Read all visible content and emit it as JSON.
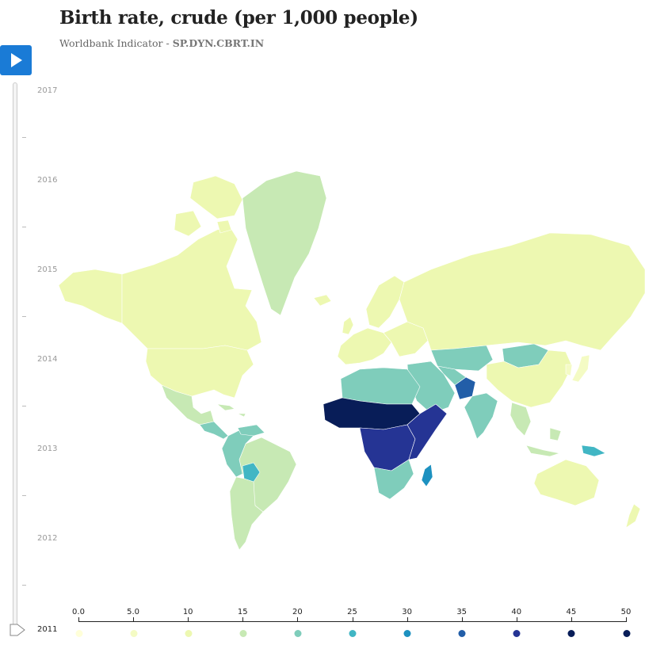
{
  "header": {
    "title": "Birth rate, crude (per 1,000 people)",
    "subtitle_prefix": "Worldbank Indicator - ",
    "indicator_code": "SP.DYN.CBRT.IN"
  },
  "player": {
    "play_icon": "play-icon",
    "accent_color": "#1a7bd6",
    "years": [
      "2017",
      "2016",
      "2015",
      "2014",
      "2013",
      "2012"
    ],
    "current_year": "2011",
    "year_min": 2011,
    "year_max": 2017,
    "selected_year": 2011
  },
  "legend": {
    "labels": [
      "0.0",
      "5.0",
      "10",
      "15",
      "20",
      "25",
      "30",
      "35",
      "40",
      "45",
      "50"
    ],
    "values": [
      0,
      5,
      10,
      15,
      20,
      25,
      30,
      35,
      40,
      45,
      50
    ],
    "colors": [
      "#ffffd9",
      "#f4fbc4",
      "#edf8b1",
      "#c7e9b4",
      "#7fcdbb",
      "#41b6c4",
      "#1d91c0",
      "#225ea8",
      "#253494",
      "#081d58",
      "#081d58"
    ]
  },
  "map": {
    "projection": "mercator",
    "regions": [
      {
        "name": "Canada",
        "value": 11
      },
      {
        "name": "United States",
        "value": 13
      },
      {
        "name": "Greenland",
        "value": 15
      },
      {
        "name": "Mexico",
        "value": 19
      },
      {
        "name": "Central America",
        "value": 24
      },
      {
        "name": "Brazil",
        "value": 15
      },
      {
        "name": "Andean region",
        "value": 20
      },
      {
        "name": "Bolivia",
        "value": 25
      },
      {
        "name": "Argentina",
        "value": 17
      },
      {
        "name": "Western Europe",
        "value": 11
      },
      {
        "name": "Eastern Europe",
        "value": 10
      },
      {
        "name": "Russia",
        "value": 13
      },
      {
        "name": "Kazakhstan",
        "value": 22
      },
      {
        "name": "Mongolia",
        "value": 24
      },
      {
        "name": "China",
        "value": 12
      },
      {
        "name": "Japan",
        "value": 8
      },
      {
        "name": "India",
        "value": 20
      },
      {
        "name": "Afghanistan",
        "value": 35
      },
      {
        "name": "Middle East",
        "value": 21
      },
      {
        "name": "North Africa",
        "value": 23
      },
      {
        "name": "Sahel",
        "value": 46
      },
      {
        "name": "Central Africa",
        "value": 43
      },
      {
        "name": "East Africa",
        "value": 40
      },
      {
        "name": "Southern Africa",
        "value": 24
      },
      {
        "name": "Madagascar",
        "value": 34
      },
      {
        "name": "Southeast Asia",
        "value": 19
      },
      {
        "name": "Papua New Guinea",
        "value": 29
      },
      {
        "name": "Australia",
        "value": 13
      },
      {
        "name": "New Zealand",
        "value": 14
      }
    ]
  }
}
